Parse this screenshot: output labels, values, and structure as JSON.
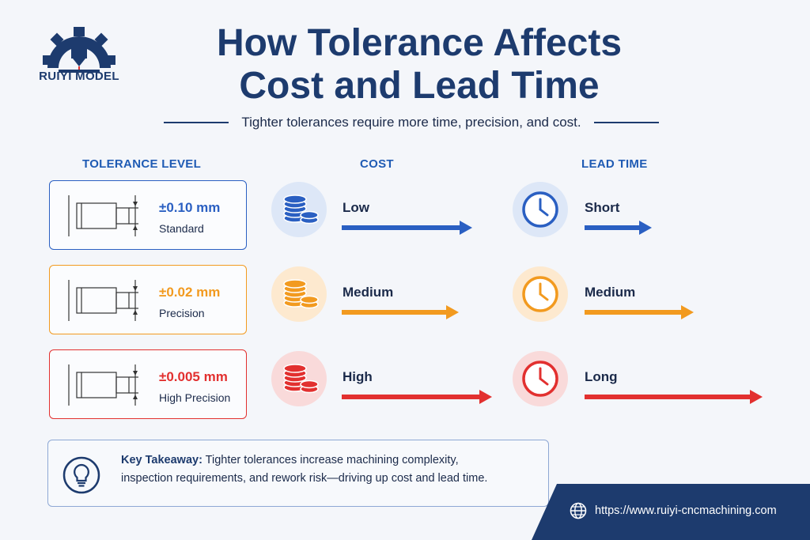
{
  "brand": {
    "name": "RUIYI MODEL",
    "icon": "gear-laser-logo-icon"
  },
  "title_line1": "How Tolerance Affects",
  "title_line2": "Cost and Lead Time",
  "subtitle": "Tighter tolerances require more time, precision, and cost.",
  "columns": {
    "tolerance": "TOLERANCE LEVEL",
    "cost": "COST",
    "lead": "LEAD TIME"
  },
  "rows": [
    {
      "tolerance": "±0.10 mm",
      "name": "Standard",
      "cost": "Low",
      "lead": "Short",
      "color": "#2a5fc2",
      "tint": "#dde7f7",
      "cost_level": 1,
      "lead_level": 1
    },
    {
      "tolerance": "±0.02 mm",
      "name": "Precision",
      "cost": "Medium",
      "lead": "Medium",
      "color": "#f29a1f",
      "tint": "#fde9cf",
      "cost_level": 2,
      "lead_level": 2
    },
    {
      "tolerance": "±0.005 mm",
      "name": "High Precision",
      "cost": "High",
      "lead": "Long",
      "color": "#e2302f",
      "tint": "#f9dada",
      "cost_level": 3,
      "lead_level": 3
    }
  ],
  "icons": {
    "part": "shaft-drawing-icon",
    "cost": "coin-stack-icon",
    "lead": "clock-icon",
    "takeaway": "lightbulb-icon",
    "web": "globe-icon"
  },
  "takeaway": {
    "label": "Key Takeaway:",
    "text_line1": " Tighter tolerances increase machining complexity,",
    "text_line2": "inspection requirements, and rework risk—driving up cost and lead time."
  },
  "footer": {
    "url": "https://www.ruiyi-cncmachining.com",
    "color": "#1d3b6e"
  }
}
